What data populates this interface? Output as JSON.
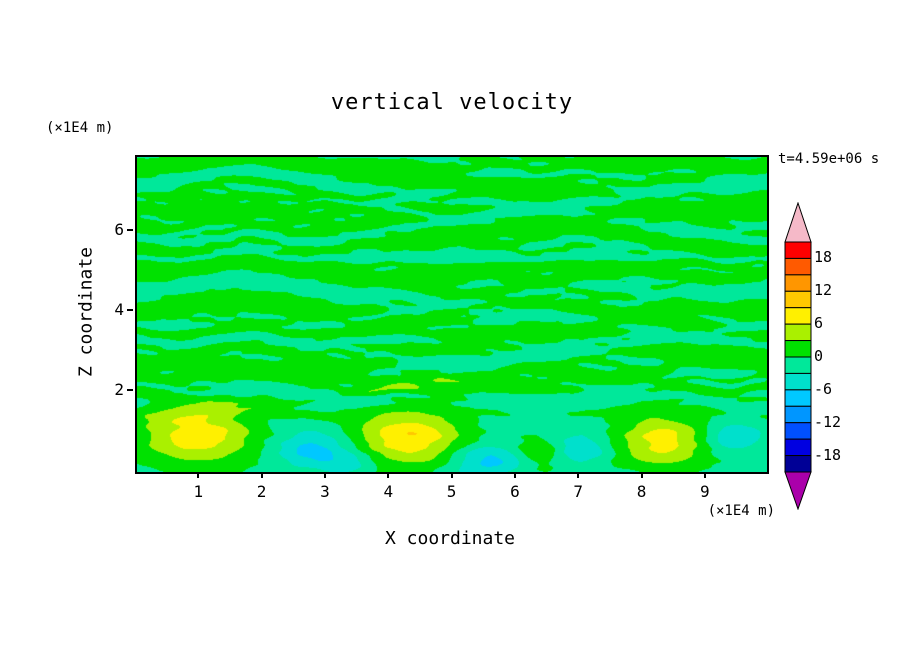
{
  "chart_data": {
    "type": "heatmap",
    "subtype": "filled-contour",
    "title": "vertical velocity",
    "time_label": "t=4.59e+06 s",
    "xlabel": "X coordinate",
    "ylabel": "Z coordinate",
    "axes": {
      "x_label": "X coordinate",
      "z_label": "Z coordinate",
      "x_unit": "(×1E4 m)",
      "z_unit": "(×1E4 m)",
      "x_ticks": [
        1,
        2,
        3,
        4,
        5,
        6,
        7,
        8,
        9
      ],
      "z_ticks": [
        2,
        4,
        6
      ],
      "xlim": [
        0,
        9.95
      ],
      "zlim": [
        0,
        7.88
      ],
      "grid": false
    },
    "title_text": "vertical velocity",
    "time_label_text": "t=4.59e+06 s",
    "colorbar": {
      "position": "right",
      "level_step": 3,
      "level_max": 21,
      "level_min": -21,
      "labels": [
        {
          "v": 18,
          "label": "18"
        },
        {
          "v": 12,
          "label": "12"
        },
        {
          "v": 6,
          "label": "6"
        },
        {
          "v": 0,
          "label": "0"
        },
        {
          "v": -6,
          "label": "-6"
        },
        {
          "v": -12,
          "label": "-12"
        },
        {
          "v": -18,
          "label": "-18"
        }
      ],
      "colors_top_to_bottom": [
        "#ff0000",
        "#ff5a00",
        "#ff9600",
        "#ffc800",
        "#fff000",
        "#aaf000",
        "#00e100",
        "#00e89a",
        "#00e0cc",
        "#00c8ff",
        "#0096ff",
        "#0050ff",
        "#0000e1",
        "#000096"
      ],
      "top_tip_color": "#f5b9c8",
      "bottom_tip_color": "#aa00aa"
    },
    "field": {
      "description": "w (vertical velocity) field: weak streaky oscillations around 0 aloft (z>2), near-boundary layer below z~2 with updraft cores (~+8) near x=1, 4.3, 8.3 and weak downdrafts (~-6) between them",
      "offset_lower": -0.95,
      "offset_upper": 0.45,
      "blend_z0": 1.25,
      "blend_dz": 0.9,
      "streak_scale_lower": 0.3,
      "streak_scale_upper": 1.0,
      "streak_clamp": 2.5,
      "streak_mod_depth": 1.6,
      "streaks": [
        {
          "a": 1.0,
          "kx": 0.8,
          "kz": 5.0,
          "p": 1.7
        },
        {
          "a": 0.85,
          "kx": 1.3,
          "kz": 7.0,
          "p": 4.2
        },
        {
          "a": 0.75,
          "kx": 2.0,
          "kz": 9.0,
          "p": 0.6
        },
        {
          "a": 0.6,
          "kx": 2.7,
          "kz": 12.0,
          "p": 3.1
        },
        {
          "a": 0.5,
          "kx": 3.5,
          "kz": 15.0,
          "p": 5.3
        },
        {
          "a": 0.4,
          "kx": 4.4,
          "kz": 18.0,
          "p": 2.4
        },
        {
          "a": 0.3,
          "kx": 5.5,
          "kz": 22.0,
          "p": 0.2
        },
        {
          "a": 0.25,
          "kx": 6.5,
          "kz": 26.0,
          "p": 4.9
        }
      ],
      "bumps": [
        {
          "x": 0.95,
          "z": 0.95,
          "amp": 9.3,
          "sx": 0.62,
          "sz": 0.5
        },
        {
          "x": 4.3,
          "z": 0.85,
          "amp": 9.6,
          "sx": 0.58,
          "sz": 0.48
        },
        {
          "x": 8.3,
          "z": 0.78,
          "amp": 8.6,
          "sx": 0.5,
          "sz": 0.42
        },
        {
          "x": 6.35,
          "z": 0.45,
          "amp": 4.5,
          "sx": 0.3,
          "sz": 0.25
        },
        {
          "x": 2.75,
          "z": 0.55,
          "amp": -6.3,
          "sx": 0.38,
          "sz": 0.3
        },
        {
          "x": 5.55,
          "z": 0.3,
          "amp": -6.0,
          "sx": 0.42,
          "sz": 0.28
        },
        {
          "x": 7.0,
          "z": 0.6,
          "amp": -5.2,
          "sx": 0.3,
          "sz": 0.26
        },
        {
          "x": 9.4,
          "z": 0.85,
          "amp": -4.6,
          "sx": 0.3,
          "sz": 0.28
        },
        {
          "x": 3.35,
          "z": 0.25,
          "amp": -4.0,
          "sx": 0.3,
          "sz": 0.22
        }
      ]
    }
  }
}
